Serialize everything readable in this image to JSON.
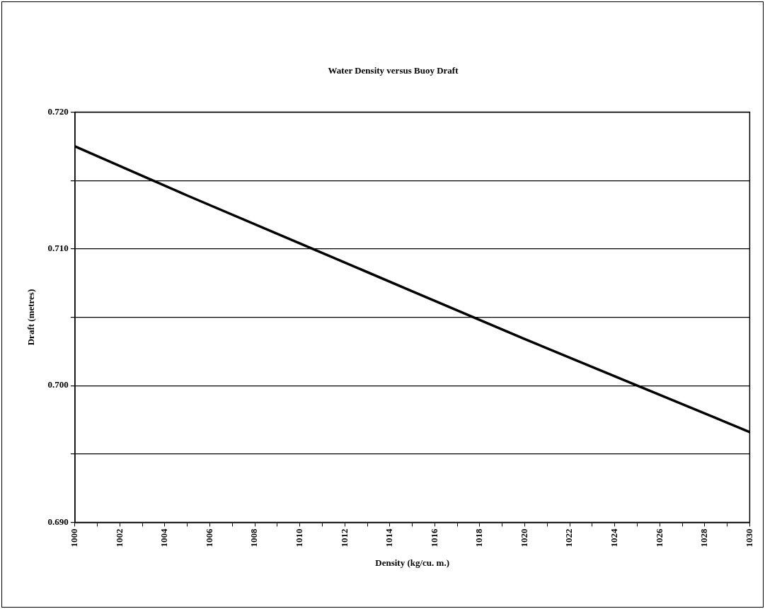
{
  "chart_data": {
    "type": "line",
    "title": "Water Density versus Buoy Draft",
    "xlabel": "Density (kg/cu. m.)",
    "ylabel": "Draft (metres)",
    "x": [
      1000,
      1005,
      1010,
      1015,
      1020,
      1025,
      1030
    ],
    "series": [
      {
        "color": "#000000",
        "values": [
          0.7175,
          0.7139,
          0.7104,
          0.7069,
          0.7034,
          0.7,
          0.6966
        ]
      }
    ],
    "xlim": [
      1000,
      1030
    ],
    "xticks": [
      1000,
      {
        "value": 1001,
        "label": null
      },
      1002,
      {
        "value": 1003,
        "label": null
      },
      1004,
      {
        "value": 1005,
        "label": null
      },
      1006,
      {
        "value": 1007,
        "label": null
      },
      1008,
      {
        "value": 1009,
        "label": null
      },
      1010,
      {
        "value": 1011,
        "label": null
      },
      1012,
      {
        "value": 1013,
        "label": null
      },
      1014,
      {
        "value": 1015,
        "label": null
      },
      1016,
      {
        "value": 1017,
        "label": null
      },
      1018,
      {
        "value": 1019,
        "label": null
      },
      1020,
      {
        "value": 1021,
        "label": null
      },
      1022,
      {
        "value": 1023,
        "label": null
      },
      1024,
      {
        "value": 1025,
        "label": null
      },
      1026,
      {
        "value": 1027,
        "label": null
      },
      1028,
      {
        "value": 1029,
        "label": null
      },
      1030
    ],
    "ylim": [
      0.69,
      0.72
    ],
    "yticks": [
      {
        "value": 0.69,
        "label": "0.690"
      },
      {
        "value": 0.695,
        "label": null
      },
      {
        "value": 0.7,
        "label": "0.700"
      },
      {
        "value": 0.705,
        "label": null
      },
      {
        "value": 0.71,
        "label": "0.710"
      },
      {
        "value": 0.715,
        "label": null
      },
      {
        "value": 0.72,
        "label": "0.720"
      }
    ],
    "grid": "y",
    "legend": false,
    "marker": "none",
    "line_style": "solid"
  }
}
